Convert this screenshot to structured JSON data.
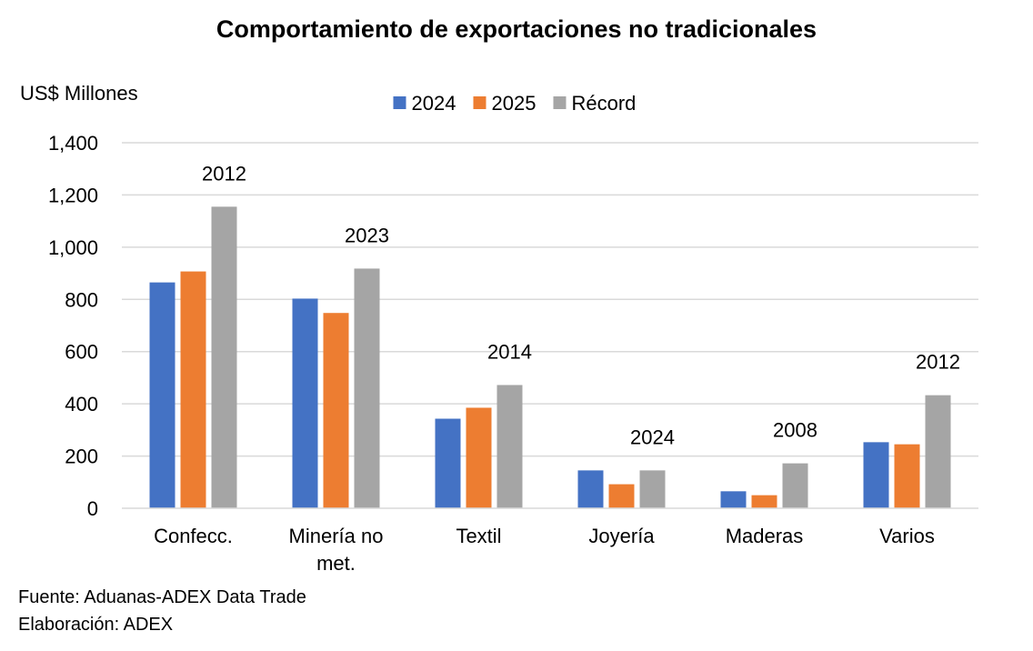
{
  "chart_data": {
    "type": "bar",
    "title": "Comportamiento de exportaciones no tradicionales",
    "ylabel": "US$ Millones",
    "xlabel": "",
    "ylim": [
      0,
      1400
    ],
    "yticks": [
      0,
      200,
      400,
      600,
      800,
      1000,
      1200,
      1400
    ],
    "ytick_labels": [
      "0",
      "200",
      "400",
      "600",
      "800",
      "1,000",
      "1,200",
      "1,400"
    ],
    "grid": true,
    "legend_position": "top",
    "categories": [
      [
        "Confecc."
      ],
      [
        "Minería no",
        "met."
      ],
      [
        "Textil"
      ],
      [
        "Joyería"
      ],
      [
        "Maderas"
      ],
      [
        "Varios"
      ]
    ],
    "series": [
      {
        "name": "2024",
        "color": "#4472C4",
        "values": [
          865,
          803,
          343,
          145,
          65,
          253
        ]
      },
      {
        "name": "2025",
        "color": "#ED7D31",
        "values": [
          907,
          748,
          385,
          92,
          50,
          245
        ]
      },
      {
        "name": "Récord",
        "color": "#A5A5A5",
        "values": [
          1155,
          918,
          472,
          145,
          172,
          433
        ]
      }
    ],
    "annotations": [
      "2012",
      "2023",
      "2014",
      "2024",
      "2008",
      "2012"
    ]
  },
  "footer": {
    "source": "Fuente: Aduanas-ADEX Data Trade",
    "credit": "Elaboración: ADEX"
  }
}
